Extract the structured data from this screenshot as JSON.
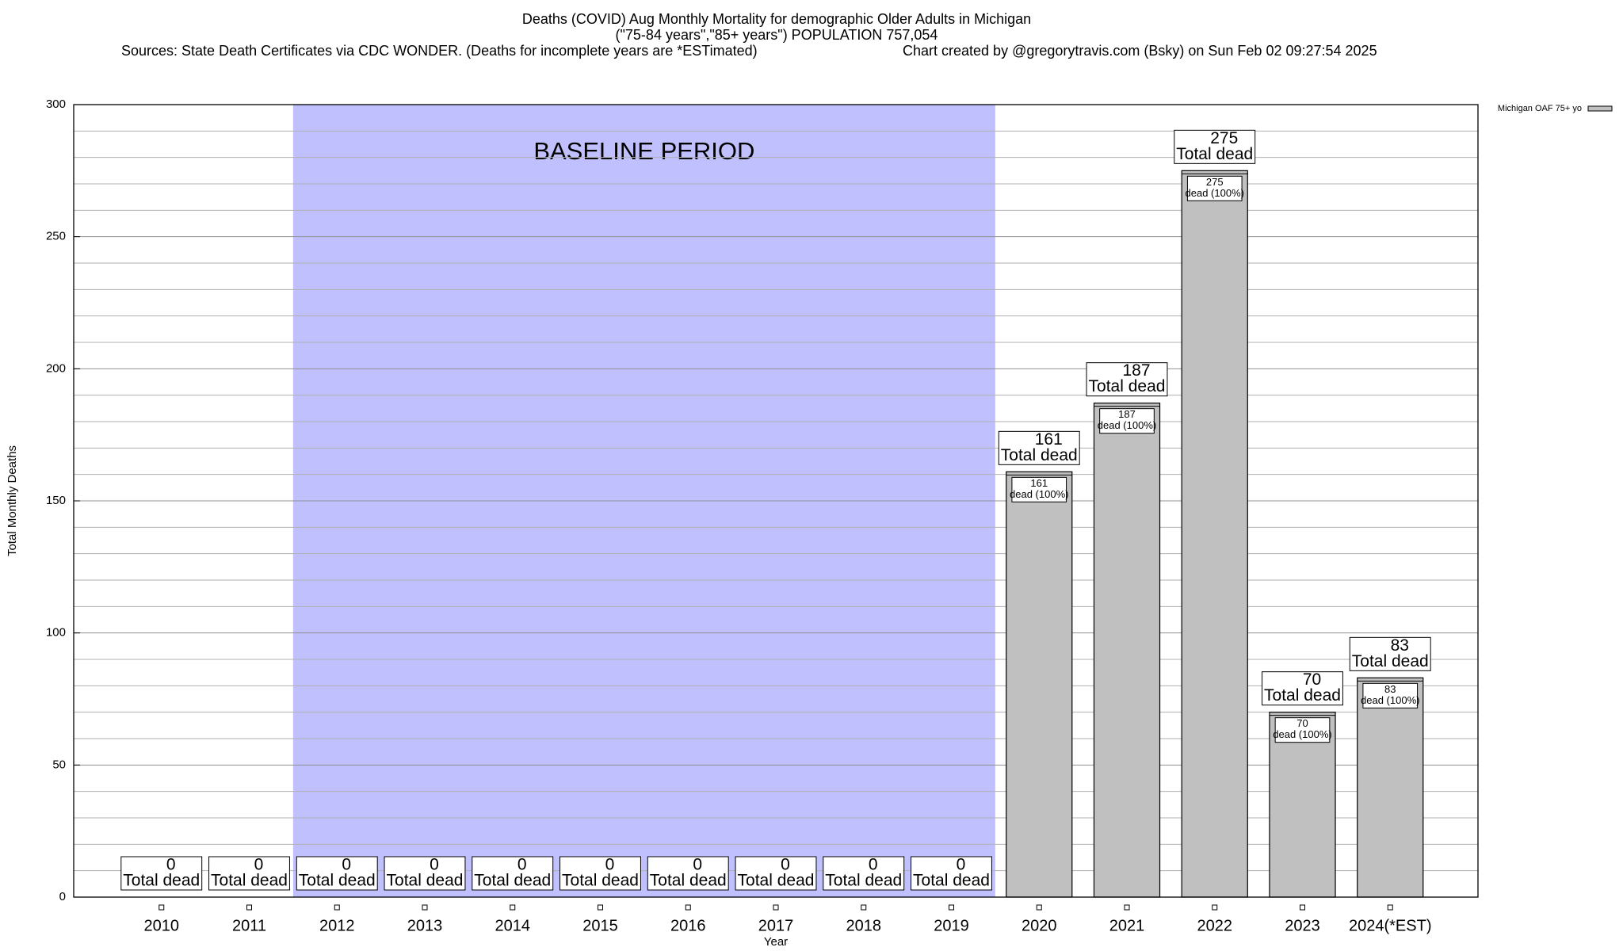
{
  "chart_data": {
    "type": "bar",
    "title": "Deaths (COVID) Aug Monthly Mortality for demographic Older Adults in Michigan",
    "subtitle": "(\"75-84 years\",\"85+ years\") POPULATION 757,054",
    "sources": "Sources: State Death Certificates via CDC WONDER. (Deaths for incomplete years are *ESTimated)",
    "credit": "Chart created by @gregorytravis.com (Bsky) on Sun Feb 02 09:27:54 2025",
    "x_label": "Year",
    "y_label": "Total Monthly Deaths",
    "categories": [
      "2010",
      "2011",
      "2012",
      "2013",
      "2014",
      "2015",
      "2016",
      "2017",
      "2018",
      "2019",
      "2020",
      "2021",
      "2022",
      "2023",
      "2024(*EST)"
    ],
    "series": [
      {
        "name": "Michigan OAF 75+ yo",
        "color": "#c0c0c0",
        "values": [
          0,
          0,
          0,
          0,
          0,
          0,
          0,
          0,
          0,
          0,
          161,
          187,
          275,
          70,
          83
        ]
      }
    ],
    "total_label": "Total dead",
    "share_label": "dead (100%)",
    "baseline_period": {
      "label": "BASELINE PERIOD",
      "from": "2012",
      "to": "2019",
      "color": "#c0c0ff"
    },
    "ylim": [
      0,
      300
    ],
    "yticks": [
      0,
      50,
      100,
      150,
      200,
      250,
      300
    ],
    "minor_yticks": [
      10,
      20,
      30,
      40,
      60,
      70,
      80,
      90,
      110,
      120,
      130,
      140,
      160,
      170,
      180,
      190,
      210,
      220,
      230,
      240,
      260,
      270,
      280,
      290
    ],
    "grid": true,
    "legend": "top-right"
  }
}
